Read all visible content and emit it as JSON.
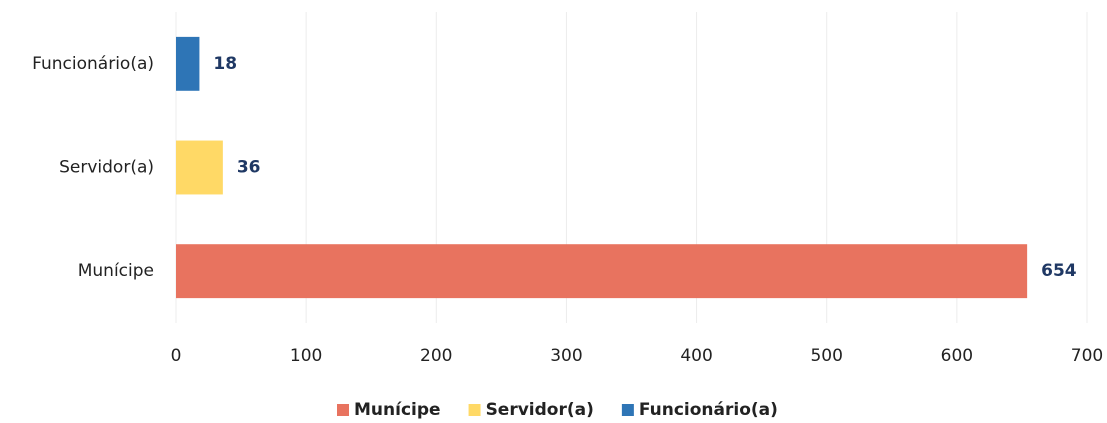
{
  "chart_data": {
    "type": "bar",
    "orientation": "horizontal",
    "categories": [
      "Funcionário(a)",
      "Servidor(a)",
      "Munícipe"
    ],
    "values": [
      18,
      36,
      654
    ],
    "colors": [
      "#2e75b6",
      "#ffd966",
      "#e8735f"
    ],
    "xlim": [
      0,
      700
    ],
    "xticks": [
      0,
      100,
      200,
      300,
      400,
      500,
      600,
      700
    ],
    "grid": true,
    "legend": "bottom"
  }
}
